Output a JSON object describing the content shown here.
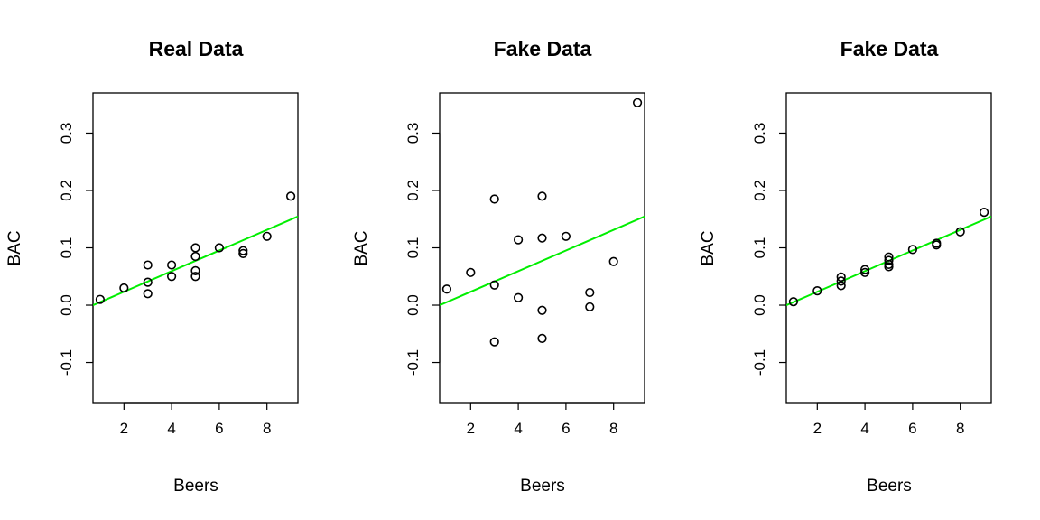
{
  "chart_data": [
    {
      "type": "scatter",
      "title": "Real Data",
      "xlabel": "Beers",
      "ylabel": "BAC",
      "xlim": [
        0.7,
        9.3
      ],
      "ylim": [
        -0.17,
        0.37
      ],
      "x_ticks": [
        2,
        4,
        6,
        8
      ],
      "y_ticks": [
        -0.1,
        0.0,
        0.1,
        0.2,
        0.3
      ],
      "x_tick_labels": [
        "2",
        "4",
        "6",
        "8"
      ],
      "y_tick_labels": [
        "-0.1",
        "0.0",
        "0.1",
        "0.2",
        "0.3"
      ],
      "points": [
        {
          "x": 1,
          "y": 0.01
        },
        {
          "x": 2,
          "y": 0.03
        },
        {
          "x": 3,
          "y": 0.07
        },
        {
          "x": 3,
          "y": 0.04
        },
        {
          "x": 3,
          "y": 0.02
        },
        {
          "x": 4,
          "y": 0.07
        },
        {
          "x": 4,
          "y": 0.05
        },
        {
          "x": 5,
          "y": 0.1
        },
        {
          "x": 5,
          "y": 0.085
        },
        {
          "x": 5,
          "y": 0.06
        },
        {
          "x": 5,
          "y": 0.05
        },
        {
          "x": 6,
          "y": 0.1
        },
        {
          "x": 7,
          "y": 0.095
        },
        {
          "x": 7,
          "y": 0.09
        },
        {
          "x": 8,
          "y": 0.12
        },
        {
          "x": 9,
          "y": 0.19
        }
      ],
      "regression_line": {
        "intercept": -0.0127,
        "slope": 0.018,
        "color": "#00ee00"
      }
    },
    {
      "type": "scatter",
      "title": "Fake Data",
      "xlabel": "Beers",
      "ylabel": "BAC",
      "xlim": [
        0.7,
        9.3
      ],
      "ylim": [
        -0.17,
        0.37
      ],
      "x_ticks": [
        2,
        4,
        6,
        8
      ],
      "y_ticks": [
        -0.1,
        0.0,
        0.1,
        0.2,
        0.3
      ],
      "x_tick_labels": [
        "2",
        "4",
        "6",
        "8"
      ],
      "y_tick_labels": [
        "-0.1",
        "0.0",
        "0.1",
        "0.2",
        "0.3"
      ],
      "points": [
        {
          "x": 1,
          "y": 0.028
        },
        {
          "x": 2,
          "y": 0.057
        },
        {
          "x": 3,
          "y": 0.185
        },
        {
          "x": 3,
          "y": 0.035
        },
        {
          "x": 3,
          "y": -0.064
        },
        {
          "x": 4,
          "y": 0.114
        },
        {
          "x": 4,
          "y": 0.013
        },
        {
          "x": 5,
          "y": 0.19
        },
        {
          "x": 5,
          "y": 0.117
        },
        {
          "x": 5,
          "y": -0.009
        },
        {
          "x": 5,
          "y": -0.058
        },
        {
          "x": 6,
          "y": 0.12
        },
        {
          "x": 7,
          "y": 0.022
        },
        {
          "x": 7,
          "y": -0.003
        },
        {
          "x": 8,
          "y": 0.076
        },
        {
          "x": 9,
          "y": 0.353
        }
      ],
      "regression_line": {
        "intercept": -0.0127,
        "slope": 0.018,
        "color": "#00ee00"
      }
    },
    {
      "type": "scatter",
      "title": "Fake Data",
      "xlabel": "Beers",
      "ylabel": "BAC",
      "xlim": [
        0.7,
        9.3
      ],
      "ylim": [
        -0.17,
        0.37
      ],
      "x_ticks": [
        2,
        4,
        6,
        8
      ],
      "y_ticks": [
        -0.1,
        0.0,
        0.1,
        0.2,
        0.3
      ],
      "x_tick_labels": [
        "2",
        "4",
        "6",
        "8"
      ],
      "y_tick_labels": [
        "-0.1",
        "0.0",
        "0.1",
        "0.2",
        "0.3"
      ],
      "points": [
        {
          "x": 1,
          "y": 0.006
        },
        {
          "x": 2,
          "y": 0.025
        },
        {
          "x": 3,
          "y": 0.049
        },
        {
          "x": 3,
          "y": 0.042
        },
        {
          "x": 3,
          "y": 0.034
        },
        {
          "x": 4,
          "y": 0.062
        },
        {
          "x": 4,
          "y": 0.057
        },
        {
          "x": 5,
          "y": 0.084
        },
        {
          "x": 5,
          "y": 0.078
        },
        {
          "x": 5,
          "y": 0.071
        },
        {
          "x": 5,
          "y": 0.067
        },
        {
          "x": 6,
          "y": 0.097
        },
        {
          "x": 7,
          "y": 0.108
        },
        {
          "x": 7,
          "y": 0.105
        },
        {
          "x": 8,
          "y": 0.128
        },
        {
          "x": 9,
          "y": 0.162
        }
      ],
      "regression_line": {
        "intercept": -0.0127,
        "slope": 0.018,
        "color": "#00ee00"
      }
    }
  ]
}
